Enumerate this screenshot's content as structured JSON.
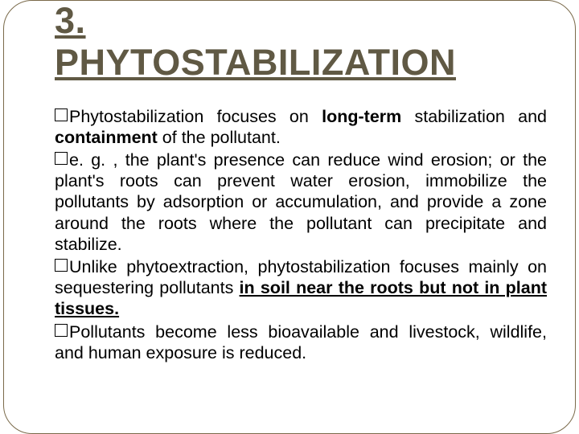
{
  "slide": {
    "border_color": "#7a6a4a",
    "border_radius": 36,
    "background_color": "#ffffff"
  },
  "title": {
    "number": "3.",
    "text": "PHYTOSTABILIZATION",
    "color": "#605944",
    "font_size": 45,
    "font_weight": "bold",
    "underline": true
  },
  "body": {
    "font_size": 21.5,
    "text_color": "#000000",
    "text_align": "justify",
    "line_height": 1.22,
    "bullet_style": "hollow-square"
  },
  "bullets": [
    {
      "runs": [
        {
          "text": "Phytostabilization focuses on ",
          "bold": false,
          "underline": false
        },
        {
          "text": "long-term",
          "bold": true,
          "underline": false
        },
        {
          "text": " stabilization and ",
          "bold": false,
          "underline": false
        },
        {
          "text": "containment",
          "bold": true,
          "underline": false
        },
        {
          "text": " of the pollutant.",
          "bold": false,
          "underline": false
        }
      ]
    },
    {
      "runs": [
        {
          "text": "e. g. , the plant's presence can reduce wind erosion; or the plant's roots can prevent water erosion, immobilize the pollutants by adsorption or accumulation, and provide a zone around the roots where the pollutant can precipitate and stabilize.",
          "bold": false,
          "underline": false
        }
      ]
    },
    {
      "runs": [
        {
          "text": "Unlike phytoextraction, phytostabilization focuses mainly on sequestering pollutants ",
          "bold": false,
          "underline": false
        },
        {
          "text": "in soil near the roots but not in plant tissues.",
          "bold": true,
          "underline": true
        }
      ]
    },
    {
      "runs": [
        {
          "text": "Pollutants become less bioavailable and livestock, wildlife, and human exposure is reduced.",
          "bold": false,
          "underline": false
        }
      ]
    }
  ]
}
